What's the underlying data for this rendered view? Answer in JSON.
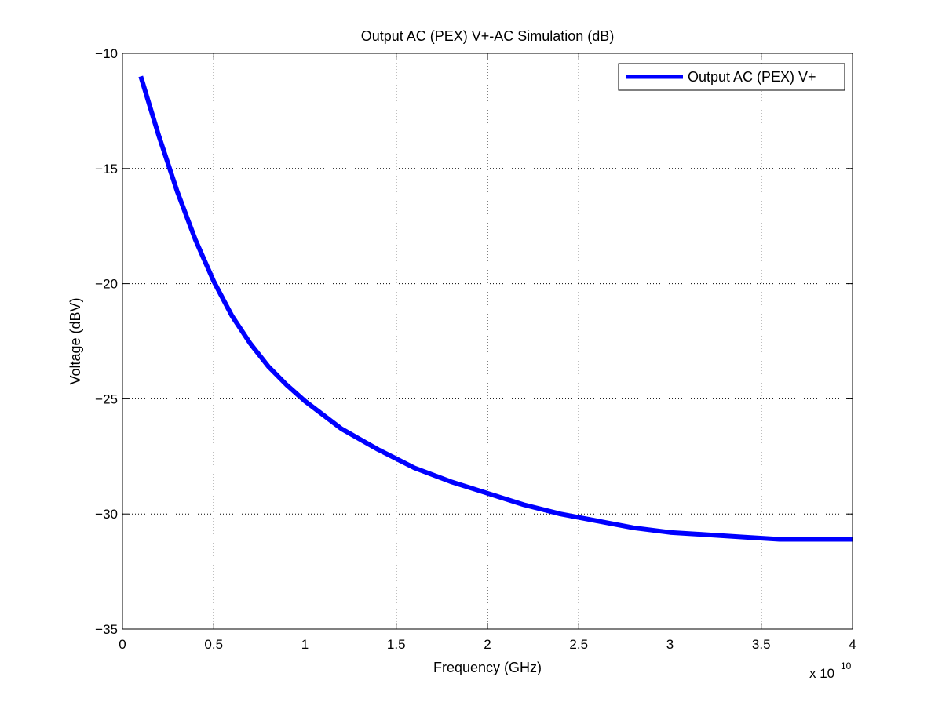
{
  "chart_data": {
    "type": "line",
    "title": "Output AC (PEX) V+-AC Simulation (dB)",
    "xlabel": "Frequency (GHz)",
    "ylabel": "Voltage (dBV)",
    "x_exponent_label": "x 10",
    "x_exponent_power": "10",
    "xlim": [
      0,
      4
    ],
    "ylim": [
      -35,
      -10
    ],
    "x_ticks": [
      0,
      0.5,
      1,
      1.5,
      2,
      2.5,
      3,
      3.5,
      4
    ],
    "x_tick_labels": [
      "0",
      "0.5",
      "1",
      "1.5",
      "2",
      "2.5",
      "3",
      "3.5",
      "4"
    ],
    "y_ticks": [
      -35,
      -30,
      -25,
      -20,
      -15,
      -10
    ],
    "y_tick_labels": [
      "−35",
      "−30",
      "−25",
      "−20",
      "−15",
      "−10"
    ],
    "grid": true,
    "legend_position": "top-right",
    "series": [
      {
        "name": "Output AC (PEX) V+",
        "color": "#0000ff",
        "x": [
          0.1,
          0.2,
          0.3,
          0.4,
          0.5,
          0.6,
          0.7,
          0.8,
          0.9,
          1.0,
          1.2,
          1.4,
          1.6,
          1.8,
          2.0,
          2.2,
          2.4,
          2.6,
          2.8,
          3.0,
          3.2,
          3.4,
          3.6,
          3.8,
          4.0
        ],
        "y": [
          -11.0,
          -13.6,
          -16.0,
          -18.1,
          -19.9,
          -21.4,
          -22.6,
          -23.6,
          -24.4,
          -25.1,
          -26.3,
          -27.2,
          -28.0,
          -28.6,
          -29.1,
          -29.6,
          -30.0,
          -30.3,
          -30.6,
          -30.8,
          -30.9,
          -31.0,
          -31.1,
          -31.1,
          -31.1
        ]
      }
    ]
  }
}
